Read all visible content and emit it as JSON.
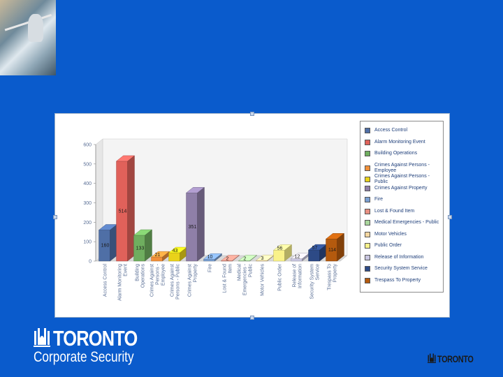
{
  "slide": {
    "background": "#0a5bcc",
    "logo_brand": "TORONTO",
    "logo_subtitle": "Corporate Security",
    "footer_logo": "TORONTO"
  },
  "chart_data": {
    "type": "bar",
    "categories": [
      "Access Control",
      "Alarm Monitoring Event",
      "Building Operations",
      "Crimes Against Persons - Employee",
      "Crimes Against Persons - Public",
      "Crimes Against Property",
      "Fire",
      "Lost & Found Item",
      "Medical Emergencies - Public",
      "Motor Vehicles",
      "Public Order",
      "Release of Information",
      "Security System Service",
      "Trespass To Property"
    ],
    "values": [
      160,
      514,
      133,
      21,
      43,
      351,
      10,
      2,
      2,
      3,
      56,
      12,
      57,
      114
    ],
    "colors": [
      "#4f6fa6",
      "#e0615a",
      "#6fae5f",
      "#f0903a",
      "#e9d21a",
      "#8f7fa8",
      "#7a9fd1",
      "#e88f82",
      "#a9d69c",
      "#f5d7a0",
      "#f9f28a",
      "#c9c6e0",
      "#2d4a86",
      "#b45a0e"
    ],
    "yticks": [
      0,
      100,
      200,
      300,
      400,
      500,
      600
    ],
    "ylim": [
      0,
      600
    ],
    "legend_position": "right",
    "grid": false,
    "title": "",
    "xlabel": "",
    "ylabel": ""
  }
}
